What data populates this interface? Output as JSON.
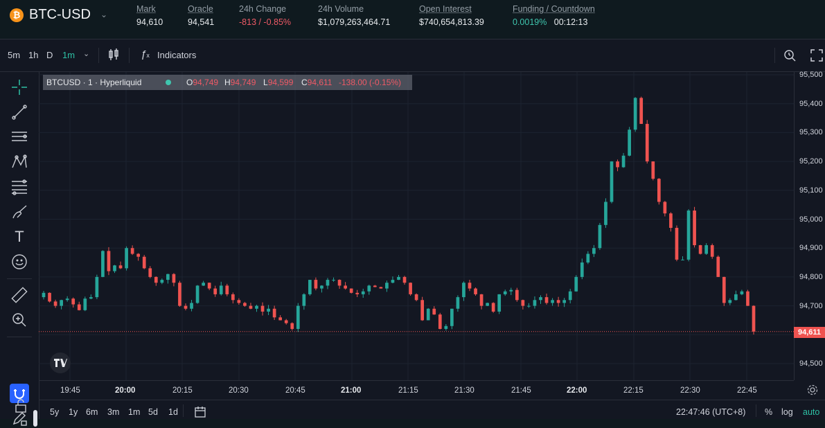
{
  "header": {
    "coin_symbol": "₿",
    "pair": "BTC-USD",
    "stats": [
      {
        "label": "Mark",
        "value": "94,610",
        "underlined": true
      },
      {
        "label": "Oracle",
        "value": "94,541",
        "underlined": true
      },
      {
        "label": "24h Change",
        "value": "-813 / -0.85%",
        "underlined": false
      },
      {
        "label": "24h Volume",
        "value": "$1,079,263,464.71",
        "underlined": false
      },
      {
        "label": "Open Interest",
        "value": "$740,654,813.39",
        "underlined": true
      }
    ],
    "funding": {
      "label": "Funding / Countdown",
      "rate": "0.0019%",
      "countdown": "00:12:13"
    }
  },
  "toolbar": {
    "timeframes": [
      "5m",
      "1h",
      "D",
      "1m"
    ],
    "active_timeframe": "1m",
    "indicators_label": "Indicators"
  },
  "legend": {
    "symbol": "BTCUSD · 1 · Hyperliquid",
    "open_label": "O",
    "open": "94,749",
    "high_label": "H",
    "high": "94,749",
    "low_label": "L",
    "low": "94,599",
    "close_label": "C",
    "close": "94,611",
    "change": "-138.00 (-0.15%)"
  },
  "price_axis": {
    "labels": [
      "95,500",
      "95,400",
      "95,300",
      "95,200",
      "95,100",
      "95,000",
      "94,900",
      "94,800",
      "94,700",
      "94,500"
    ],
    "current_price": "94,611"
  },
  "time_axis": {
    "labels": [
      {
        "t": "19:45",
        "bold": false
      },
      {
        "t": "20:00",
        "bold": true
      },
      {
        "t": "20:15",
        "bold": false
      },
      {
        "t": "20:30",
        "bold": false
      },
      {
        "t": "20:45",
        "bold": false
      },
      {
        "t": "21:00",
        "bold": true
      },
      {
        "t": "21:15",
        "bold": false
      },
      {
        "t": "21:30",
        "bold": false
      },
      {
        "t": "21:45",
        "bold": false
      },
      {
        "t": "22:00",
        "bold": true
      },
      {
        "t": "22:15",
        "bold": false
      },
      {
        "t": "22:30",
        "bold": false
      },
      {
        "t": "22:45",
        "bold": false
      }
    ]
  },
  "bottom_bar": {
    "ranges": [
      "5y",
      "1y",
      "6m",
      "3m",
      "1m",
      "5d",
      "1d"
    ],
    "clock": "22:47:46 (UTC+8)",
    "percent": "%",
    "log": "log",
    "auto": "auto"
  },
  "colors": {
    "up": "#26a69a",
    "down": "#ef5350",
    "background": "#131722",
    "accent": "#2ec1a5"
  },
  "chart_data": {
    "type": "candlestick",
    "interval": "1m",
    "x": [
      "19:45",
      "20:00",
      "20:15",
      "20:30",
      "20:45",
      "21:00",
      "21:15",
      "21:30",
      "21:45",
      "22:00",
      "22:15",
      "22:30",
      "22:45"
    ],
    "y_range": [
      94500,
      95500
    ],
    "path": [
      94730,
      94745,
      94715,
      94700,
      94720,
      94725,
      94705,
      94685,
      94725,
      94730,
      94800,
      94890,
      94820,
      94840,
      94830,
      94900,
      94880,
      94870,
      94830,
      94800,
      94780,
      94790,
      94810,
      94780,
      94700,
      94690,
      94710,
      94770,
      94780,
      94760,
      94740,
      94770,
      94740,
      94720,
      94710,
      94700,
      94690,
      94700,
      94680,
      94690,
      94660,
      94650,
      94640,
      94620,
      94700,
      94740,
      94790,
      94760,
      94770,
      94790,
      94790,
      94770,
      94760,
      94745,
      94740,
      94750,
      94770,
      94765,
      94760,
      94780,
      94790,
      94800,
      94780,
      94740,
      94720,
      94650,
      94690,
      94670,
      94620,
      94630,
      94690,
      94730,
      94780,
      94760,
      94740,
      94700,
      94710,
      94680,
      94740,
      94750,
      94755,
      94720,
      94700,
      94700,
      94720,
      94730,
      94710,
      94720,
      94710,
      94720,
      94750,
      94800,
      94850,
      94880,
      94900,
      94980,
      95060,
      95200,
      95180,
      95220,
      95310,
      95420,
      95330,
      95200,
      95140,
      95060,
      95020,
      94970,
      94860,
      94860,
      95030,
      94910,
      94880,
      94910,
      94870,
      94800,
      94710,
      94720,
      94740,
      94750,
      94700,
      94611
    ]
  }
}
